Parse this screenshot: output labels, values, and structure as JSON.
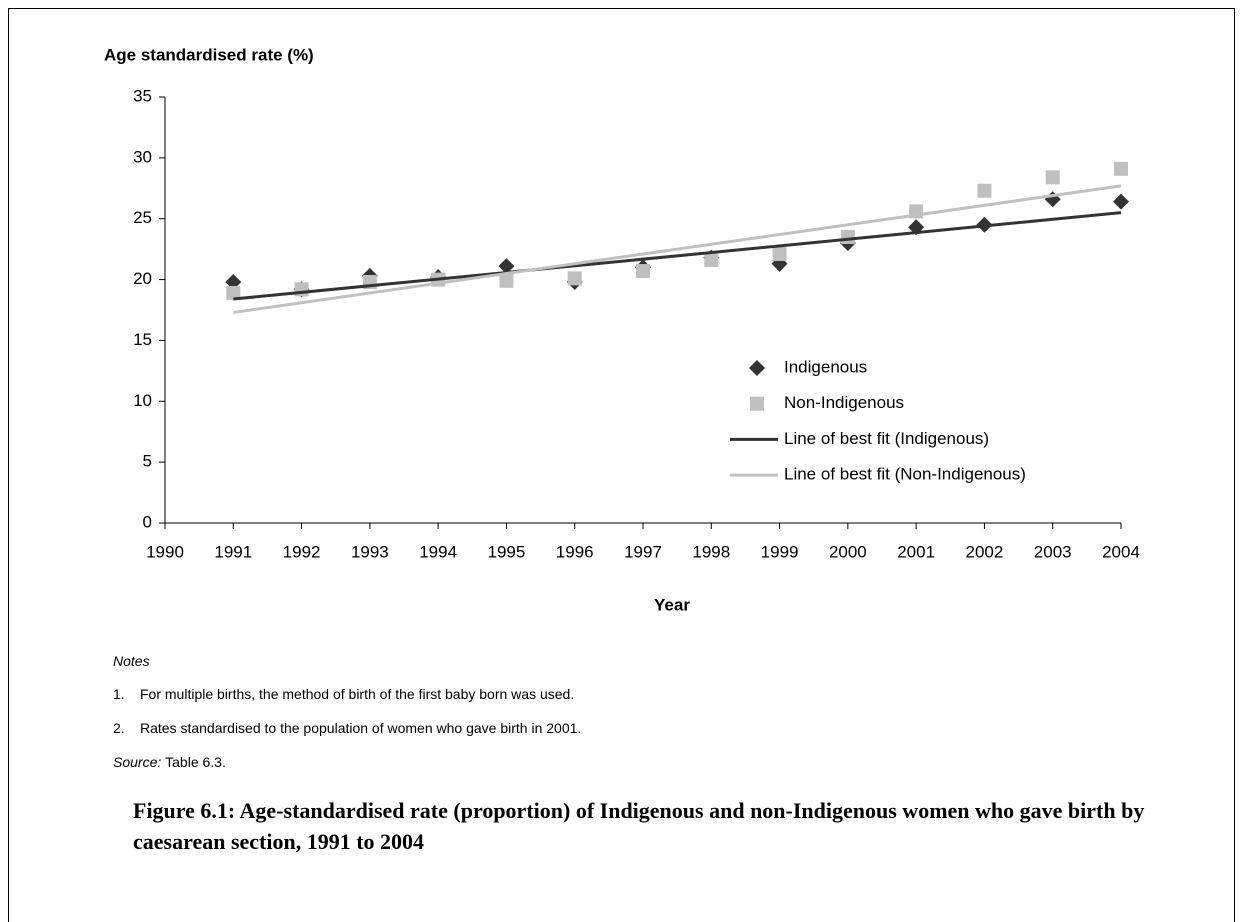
{
  "chart_data": {
    "type": "scatter",
    "ylabel": "Age standardised rate (%)",
    "xlabel": "Year",
    "x": [
      1991,
      1992,
      1993,
      1994,
      1995,
      1996,
      1997,
      1998,
      1999,
      2000,
      2001,
      2002,
      2003,
      2004
    ],
    "series": [
      {
        "name": "Indigenous",
        "color": "#333333",
        "marker": "diamond",
        "values": [
          19.8,
          19.2,
          20.3,
          20.2,
          21.1,
          19.8,
          21.0,
          21.8,
          21.3,
          23.0,
          24.3,
          24.5,
          26.6,
          26.4
        ]
      },
      {
        "name": "Non-Indigenous",
        "color": "#bfbfbf",
        "marker": "square",
        "values": [
          18.9,
          19.2,
          19.8,
          20.0,
          19.9,
          20.1,
          20.7,
          21.6,
          22.1,
          23.5,
          25.6,
          27.3,
          28.4,
          29.1
        ]
      },
      {
        "name": "Line of best fit (Indigenous)",
        "color": "#333333",
        "marker": "line",
        "x": [
          1991,
          2004
        ],
        "values": [
          18.4,
          25.5
        ]
      },
      {
        "name": "Line of best fit (Non-Indigenous)",
        "color": "#c0c0c0",
        "marker": "line",
        "x": [
          1991,
          2004
        ],
        "values": [
          17.3,
          27.7
        ]
      }
    ],
    "xlim": [
      1990,
      2004
    ],
    "xticks": [
      1990,
      1991,
      1992,
      1993,
      1994,
      1995,
      1996,
      1997,
      1998,
      1999,
      2000,
      2001,
      2002,
      2003,
      2004
    ],
    "ylim": [
      0,
      35
    ],
    "yticks": [
      0,
      5,
      10,
      15,
      20,
      25,
      30,
      35
    ],
    "grid": false,
    "legend": "right"
  },
  "notes": {
    "heading": "Notes",
    "items": [
      {
        "number": "1.",
        "text": "For multiple births, the method of birth of the first baby born was used."
      },
      {
        "number": "2.",
        "text": "Rates standardised to the population of women who gave birth in 2001."
      }
    ]
  },
  "source": {
    "label": "Source:",
    "text": "Table 6.3."
  },
  "caption": "Figure 6.1: Age-standardised rate (proportion) of Indigenous and non-Indigenous women who gave birth by caesarean section, 1991 to 2004"
}
